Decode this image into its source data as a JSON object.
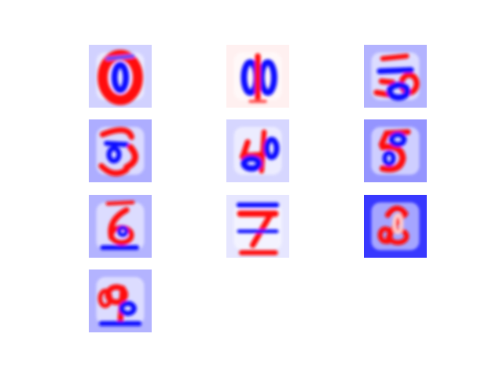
{
  "chart_data": {
    "type": "heatmap",
    "colormap": "bwr",
    "grid": {
      "rows": 4,
      "cols": 3
    },
    "axes_visible": false,
    "colors": {
      "negative": "#0000ff",
      "zero": "#ffffff",
      "positive": "#ff0000"
    },
    "panels": [
      {
        "index": 0,
        "shape": "zero",
        "background": 0.18
      },
      {
        "index": 1,
        "shape": "one",
        "background": -0.06
      },
      {
        "index": 2,
        "shape": "two",
        "background": 0.3
      },
      {
        "index": 3,
        "shape": "three",
        "background": 0.32
      },
      {
        "index": 4,
        "shape": "four",
        "background": 0.16
      },
      {
        "index": 5,
        "shape": "five",
        "background": 0.42
      },
      {
        "index": 6,
        "shape": "six",
        "background": 0.3
      },
      {
        "index": 7,
        "shape": "seven",
        "background": 0.1
      },
      {
        "index": 8,
        "shape": "eight",
        "background": 0.78
      },
      {
        "index": 9,
        "shape": "nine",
        "background": 0.3
      }
    ]
  }
}
